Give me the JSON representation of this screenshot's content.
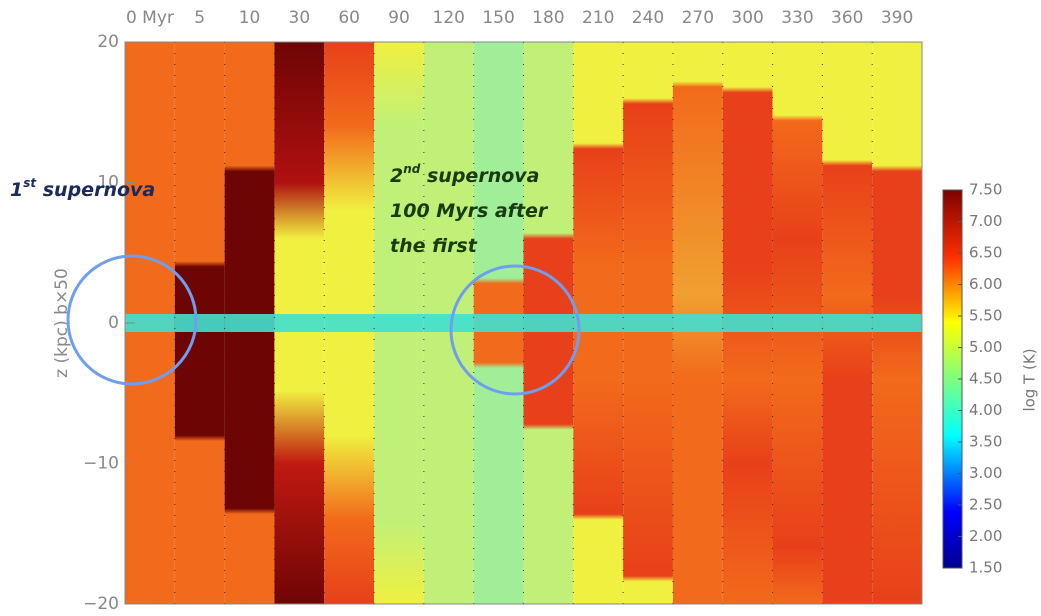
{
  "chart_data": {
    "type": "panels",
    "categories": [
      "0 Myr",
      "5",
      "10",
      "30",
      "60",
      "90",
      "120",
      "150",
      "180",
      "210",
      "240",
      "270",
      "300",
      "330",
      "360",
      "390"
    ],
    "y_label": "z (kpc) b×50",
    "ylim": [
      -20,
      20
    ],
    "yticks": [
      {
        "value": -20,
        "label": "−20"
      },
      {
        "value": -10,
        "label": "−10"
      },
      0,
      10,
      20
    ],
    "colorbar": {
      "label": "log T (K)",
      "clim": [
        1.5,
        7.5
      ],
      "ticks": [
        {
          "value": 7.5,
          "label": "7.50"
        },
        {
          "value": 7,
          "label": "7.00"
        },
        {
          "value": 6.5,
          "label": "6.50"
        },
        {
          "value": 6,
          "label": "6.00"
        },
        {
          "value": 5.5,
          "label": "5.50"
        },
        {
          "value": 5,
          "label": "5.00"
        },
        {
          "value": 4.5,
          "label": "4.50"
        },
        {
          "value": 4,
          "label": "4.00"
        },
        {
          "value": 3.5,
          "label": "3.50"
        },
        {
          "value": 3,
          "label": "3.00"
        },
        {
          "value": 2.5,
          "label": "2.50"
        },
        {
          "value": 2,
          "label": "2.00"
        },
        {
          "value": 1.5,
          "label": "1.50"
        }
      ]
    },
    "annotations": [
      {
        "number": "1",
        "sup": "st",
        "lines": [
          "supernova"
        ]
      },
      {
        "number": "2",
        "sup": "nd",
        "lines": [
          "supernova",
          "100 Myrs after",
          "the first"
        ]
      }
    ]
  }
}
